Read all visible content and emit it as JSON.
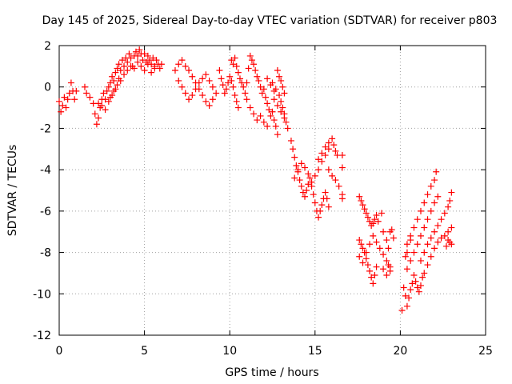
{
  "chart_data": {
    "type": "scatter",
    "title": "Day 145 of 2025, Sidereal Day-to-day VTEC variation (SDTVAR) for receiver p803",
    "xlabel": "GPS time / hours",
    "ylabel": "SDTVAR / TECUs",
    "xlim": [
      0,
      25
    ],
    "ylim": [
      -12,
      2
    ],
    "xticks": [
      "0",
      "5",
      "10",
      "15",
      "20",
      "25"
    ],
    "yticks": [
      "2",
      "0",
      "-2",
      "-4",
      "-6",
      "-8",
      "-10",
      "-12"
    ],
    "grid": true,
    "marker": "+",
    "marker_color": "#ff0000",
    "series": [
      {
        "points": [
          [
            0.0,
            -0.7
          ],
          [
            0.1,
            -1.2
          ],
          [
            0.2,
            -0.9
          ],
          [
            0.3,
            -0.5
          ],
          [
            0.4,
            -1.0
          ],
          [
            0.5,
            -0.6
          ],
          [
            0.6,
            -0.3
          ],
          [
            0.7,
            0.2
          ],
          [
            0.8,
            -0.2
          ],
          [
            0.9,
            -0.6
          ],
          [
            1.0,
            -0.2
          ],
          [
            1.5,
            0.0
          ],
          [
            1.6,
            -0.3
          ],
          [
            1.8,
            -0.5
          ],
          [
            2.0,
            -0.8
          ],
          [
            2.1,
            -1.3
          ],
          [
            2.2,
            -1.8
          ],
          [
            2.3,
            -1.5
          ],
          [
            2.4,
            -1.0
          ],
          [
            2.5,
            -0.6
          ],
          [
            2.6,
            -0.3
          ],
          [
            2.7,
            -0.6
          ],
          [
            2.8,
            -0.2
          ],
          [
            2.9,
            0.0
          ],
          [
            3.0,
            0.2
          ],
          [
            3.1,
            0.5
          ],
          [
            3.2,
            0.3
          ],
          [
            3.3,
            0.7
          ],
          [
            3.4,
            0.9
          ],
          [
            3.5,
            1.1
          ],
          [
            3.6,
            0.8
          ],
          [
            3.7,
            1.3
          ],
          [
            3.8,
            1.0
          ],
          [
            3.9,
            1.4
          ],
          [
            4.0,
            1.2
          ],
          [
            4.1,
            1.6
          ],
          [
            4.2,
            1.4
          ],
          [
            4.3,
            1.0
          ],
          [
            4.4,
            1.5
          ],
          [
            4.5,
            1.7
          ],
          [
            4.6,
            1.5
          ],
          [
            4.7,
            1.8
          ],
          [
            4.8,
            1.6
          ],
          [
            4.9,
            1.3
          ],
          [
            5.0,
            1.6
          ],
          [
            5.1,
            1.2
          ],
          [
            5.2,
            1.5
          ],
          [
            5.3,
            1.3
          ],
          [
            5.4,
            1.1
          ],
          [
            5.5,
            1.4
          ],
          [
            5.6,
            1.0
          ],
          [
            5.7,
            1.3
          ],
          [
            5.8,
            1.1
          ],
          [
            5.9,
            0.9
          ],
          [
            6.0,
            1.1
          ],
          [
            3.0,
            -0.5
          ],
          [
            3.2,
            -0.2
          ],
          [
            3.4,
            0.1
          ],
          [
            3.6,
            0.3
          ],
          [
            3.8,
            0.6
          ],
          [
            4.0,
            0.8
          ],
          [
            4.2,
            1.0
          ],
          [
            4.4,
            0.9
          ],
          [
            4.6,
            1.2
          ],
          [
            4.8,
            1.0
          ],
          [
            5.0,
            0.8
          ],
          [
            5.2,
            1.1
          ],
          [
            5.4,
            0.7
          ],
          [
            5.6,
            0.9
          ],
          [
            2.3,
            -0.8
          ],
          [
            2.5,
            -0.9
          ],
          [
            2.7,
            -1.1
          ],
          [
            2.9,
            -0.7
          ],
          [
            3.1,
            -0.4
          ],
          [
            3.3,
            -0.1
          ],
          [
            3.5,
            0.4
          ],
          [
            6.8,
            0.8
          ],
          [
            7.0,
            1.1
          ],
          [
            7.2,
            1.3
          ],
          [
            7.4,
            1.0
          ],
          [
            7.6,
            0.8
          ],
          [
            7.8,
            0.5
          ],
          [
            8.0,
            0.2
          ],
          [
            8.2,
            -0.1
          ],
          [
            8.4,
            -0.4
          ],
          [
            8.6,
            -0.7
          ],
          [
            8.8,
            -0.9
          ],
          [
            9.0,
            -0.6
          ],
          [
            9.2,
            -0.3
          ],
          [
            7.0,
            0.3
          ],
          [
            7.2,
            0.0
          ],
          [
            7.4,
            -0.3
          ],
          [
            7.6,
            -0.6
          ],
          [
            7.8,
            -0.4
          ],
          [
            8.0,
            -0.1
          ],
          [
            8.2,
            0.2
          ],
          [
            8.4,
            0.4
          ],
          [
            8.6,
            0.6
          ],
          [
            8.8,
            0.3
          ],
          [
            9.0,
            0.0
          ],
          [
            9.4,
            0.8
          ],
          [
            9.5,
            0.4
          ],
          [
            9.6,
            0.1
          ],
          [
            9.7,
            -0.3
          ],
          [
            9.8,
            -0.1
          ],
          [
            9.9,
            0.2
          ],
          [
            10.0,
            0.5
          ],
          [
            10.1,
            0.3
          ],
          [
            10.2,
            0.0
          ],
          [
            10.3,
            -0.4
          ],
          [
            10.4,
            -0.7
          ],
          [
            10.5,
            -1.0
          ],
          [
            10.1,
            1.3
          ],
          [
            10.2,
            1.1
          ],
          [
            10.3,
            1.4
          ],
          [
            10.4,
            1.0
          ],
          [
            10.5,
            0.7
          ],
          [
            10.6,
            0.4
          ],
          [
            10.7,
            0.2
          ],
          [
            10.8,
            0.0
          ],
          [
            10.9,
            -0.3
          ],
          [
            11.0,
            0.2
          ],
          [
            11.1,
            0.9
          ],
          [
            11.2,
            1.5
          ],
          [
            11.3,
            1.3
          ],
          [
            11.4,
            1.1
          ],
          [
            11.5,
            0.8
          ],
          [
            11.6,
            0.5
          ],
          [
            11.7,
            0.3
          ],
          [
            11.8,
            0.0
          ],
          [
            11.9,
            -0.3
          ],
          [
            12.0,
            -0.1
          ],
          [
            12.1,
            -0.5
          ],
          [
            12.2,
            -0.8
          ],
          [
            12.3,
            -1.1
          ],
          [
            12.4,
            -1.4
          ],
          [
            12.5,
            -1.2
          ],
          [
            12.6,
            -1.6
          ],
          [
            12.7,
            -1.9
          ],
          [
            12.8,
            -2.3
          ],
          [
            11.0,
            -0.6
          ],
          [
            11.2,
            -1.0
          ],
          [
            11.4,
            -1.3
          ],
          [
            11.6,
            -1.6
          ],
          [
            11.8,
            -1.4
          ],
          [
            12.0,
            -1.7
          ],
          [
            12.2,
            -1.9
          ],
          [
            12.5,
            0.2
          ],
          [
            12.7,
            -0.1
          ],
          [
            12.9,
            -0.4
          ],
          [
            13.0,
            -0.7
          ],
          [
            13.1,
            -1.0
          ],
          [
            13.2,
            -1.3
          ],
          [
            13.3,
            -1.7
          ],
          [
            13.4,
            -2.0
          ],
          [
            12.6,
            -0.6
          ],
          [
            12.8,
            -0.9
          ],
          [
            13.0,
            -1.2
          ],
          [
            13.2,
            -1.5
          ],
          [
            12.2,
            0.4
          ],
          [
            12.4,
            0.1
          ],
          [
            12.6,
            -0.2
          ],
          [
            12.8,
            0.8
          ],
          [
            12.9,
            0.5
          ],
          [
            13.0,
            0.3
          ],
          [
            13.1,
            0.0
          ],
          [
            13.2,
            -0.3
          ],
          [
            13.6,
            -2.6
          ],
          [
            13.7,
            -3.0
          ],
          [
            13.8,
            -3.4
          ],
          [
            13.9,
            -3.8
          ],
          [
            14.0,
            -4.1
          ],
          [
            14.1,
            -4.5
          ],
          [
            14.2,
            -4.8
          ],
          [
            14.3,
            -5.1
          ],
          [
            14.4,
            -5.3
          ],
          [
            14.5,
            -5.0
          ],
          [
            14.6,
            -4.7
          ],
          [
            14.7,
            -4.4
          ],
          [
            14.8,
            -4.8
          ],
          [
            14.9,
            -5.2
          ],
          [
            15.0,
            -5.6
          ],
          [
            15.1,
            -6.0
          ],
          [
            15.2,
            -6.3
          ],
          [
            15.3,
            -6.0
          ],
          [
            15.4,
            -5.7
          ],
          [
            15.5,
            -5.4
          ],
          [
            15.6,
            -5.1
          ],
          [
            15.7,
            -5.4
          ],
          [
            15.8,
            -5.8
          ],
          [
            13.8,
            -4.4
          ],
          [
            14.0,
            -4.0
          ],
          [
            14.2,
            -3.7
          ],
          [
            14.4,
            -3.9
          ],
          [
            14.6,
            -4.2
          ],
          [
            14.8,
            -4.6
          ],
          [
            15.0,
            -4.3
          ],
          [
            15.2,
            -4.0
          ],
          [
            15.4,
            -3.6
          ],
          [
            15.6,
            -3.3
          ],
          [
            15.8,
            -3.0
          ],
          [
            15.2,
            -3.5
          ],
          [
            15.4,
            -3.2
          ],
          [
            15.6,
            -2.9
          ],
          [
            15.8,
            -2.7
          ],
          [
            16.0,
            -2.5
          ],
          [
            16.1,
            -2.8
          ],
          [
            16.2,
            -3.1
          ],
          [
            16.3,
            -3.3
          ],
          [
            15.8,
            -4.0
          ],
          [
            16.0,
            -4.3
          ],
          [
            16.2,
            -4.5
          ],
          [
            16.4,
            -4.8
          ],
          [
            16.6,
            -3.3
          ],
          [
            16.6,
            -3.9
          ],
          [
            16.6,
            -5.2
          ],
          [
            16.6,
            -5.4
          ],
          [
            17.6,
            -5.3
          ],
          [
            17.7,
            -5.5
          ],
          [
            17.8,
            -5.7
          ],
          [
            17.9,
            -5.9
          ],
          [
            18.0,
            -6.1
          ],
          [
            18.1,
            -6.3
          ],
          [
            18.2,
            -6.5
          ],
          [
            18.3,
            -6.7
          ],
          [
            18.4,
            -6.6
          ],
          [
            18.5,
            -6.4
          ],
          [
            18.6,
            -6.2
          ],
          [
            17.6,
            -7.4
          ],
          [
            17.7,
            -7.6
          ],
          [
            17.8,
            -7.8
          ],
          [
            17.9,
            -8.0
          ],
          [
            18.0,
            -8.3
          ],
          [
            18.1,
            -8.6
          ],
          [
            18.2,
            -8.9
          ],
          [
            18.3,
            -9.2
          ],
          [
            18.4,
            -9.5
          ],
          [
            18.5,
            -9.1
          ],
          [
            18.6,
            -8.7
          ],
          [
            17.6,
            -8.2
          ],
          [
            17.8,
            -8.5
          ],
          [
            18.0,
            -8.0
          ],
          [
            18.2,
            -7.6
          ],
          [
            18.4,
            -7.2
          ],
          [
            18.6,
            -7.5
          ],
          [
            18.8,
            -7.8
          ],
          [
            19.0,
            -8.1
          ],
          [
            19.2,
            -8.4
          ],
          [
            19.4,
            -8.7
          ],
          [
            18.7,
            -6.5
          ],
          [
            18.9,
            -6.1
          ],
          [
            19.0,
            -7.0
          ],
          [
            19.2,
            -7.4
          ],
          [
            19.3,
            -7.8
          ],
          [
            19.4,
            -7.0
          ],
          [
            19.5,
            -6.9
          ],
          [
            19.6,
            -7.3
          ],
          [
            19.0,
            -8.8
          ],
          [
            19.2,
            -9.1
          ],
          [
            19.3,
            -8.6
          ],
          [
            19.4,
            -8.9
          ],
          [
            20.3,
            -10.1
          ],
          [
            20.4,
            -10.6
          ],
          [
            20.5,
            -10.2
          ],
          [
            20.6,
            -9.8
          ],
          [
            20.7,
            -9.5
          ],
          [
            20.8,
            -9.1
          ],
          [
            20.9,
            -9.4
          ],
          [
            21.0,
            -9.7
          ],
          [
            21.1,
            -9.9
          ],
          [
            21.2,
            -9.6
          ],
          [
            21.3,
            -9.2
          ],
          [
            20.4,
            -8.8
          ],
          [
            20.6,
            -8.4
          ],
          [
            20.8,
            -8.0
          ],
          [
            21.0,
            -7.6
          ],
          [
            21.2,
            -7.2
          ],
          [
            21.4,
            -6.8
          ],
          [
            21.6,
            -6.4
          ],
          [
            21.8,
            -6.0
          ],
          [
            22.0,
            -5.6
          ],
          [
            22.2,
            -5.3
          ],
          [
            20.4,
            -7.6
          ],
          [
            20.6,
            -7.2
          ],
          [
            20.8,
            -6.8
          ],
          [
            21.0,
            -6.4
          ],
          [
            21.2,
            -6.0
          ],
          [
            21.4,
            -5.6
          ],
          [
            21.6,
            -5.2
          ],
          [
            21.8,
            -4.8
          ],
          [
            22.0,
            -4.5
          ],
          [
            22.1,
            -4.1
          ],
          [
            21.2,
            -8.4
          ],
          [
            21.4,
            -8.0
          ],
          [
            21.6,
            -7.6
          ],
          [
            21.8,
            -7.3
          ],
          [
            22.0,
            -7.0
          ],
          [
            22.2,
            -6.7
          ],
          [
            22.4,
            -6.4
          ],
          [
            22.6,
            -6.1
          ],
          [
            22.8,
            -5.8
          ],
          [
            22.9,
            -5.5
          ],
          [
            23.0,
            -5.1
          ],
          [
            21.4,
            -9.0
          ],
          [
            21.6,
            -8.6
          ],
          [
            21.8,
            -8.2
          ],
          [
            22.0,
            -7.8
          ],
          [
            22.2,
            -7.5
          ],
          [
            22.4,
            -7.3
          ],
          [
            22.6,
            -7.2
          ],
          [
            22.8,
            -7.4
          ],
          [
            23.0,
            -7.6
          ],
          [
            20.1,
            -10.8
          ],
          [
            20.2,
            -9.7
          ],
          [
            20.3,
            -8.2
          ],
          [
            20.4,
            -8.0
          ],
          [
            20.6,
            -7.4
          ],
          [
            22.8,
            -7.0
          ],
          [
            23.0,
            -6.8
          ],
          [
            22.7,
            -7.7
          ],
          [
            22.9,
            -7.5
          ]
        ]
      }
    ]
  }
}
